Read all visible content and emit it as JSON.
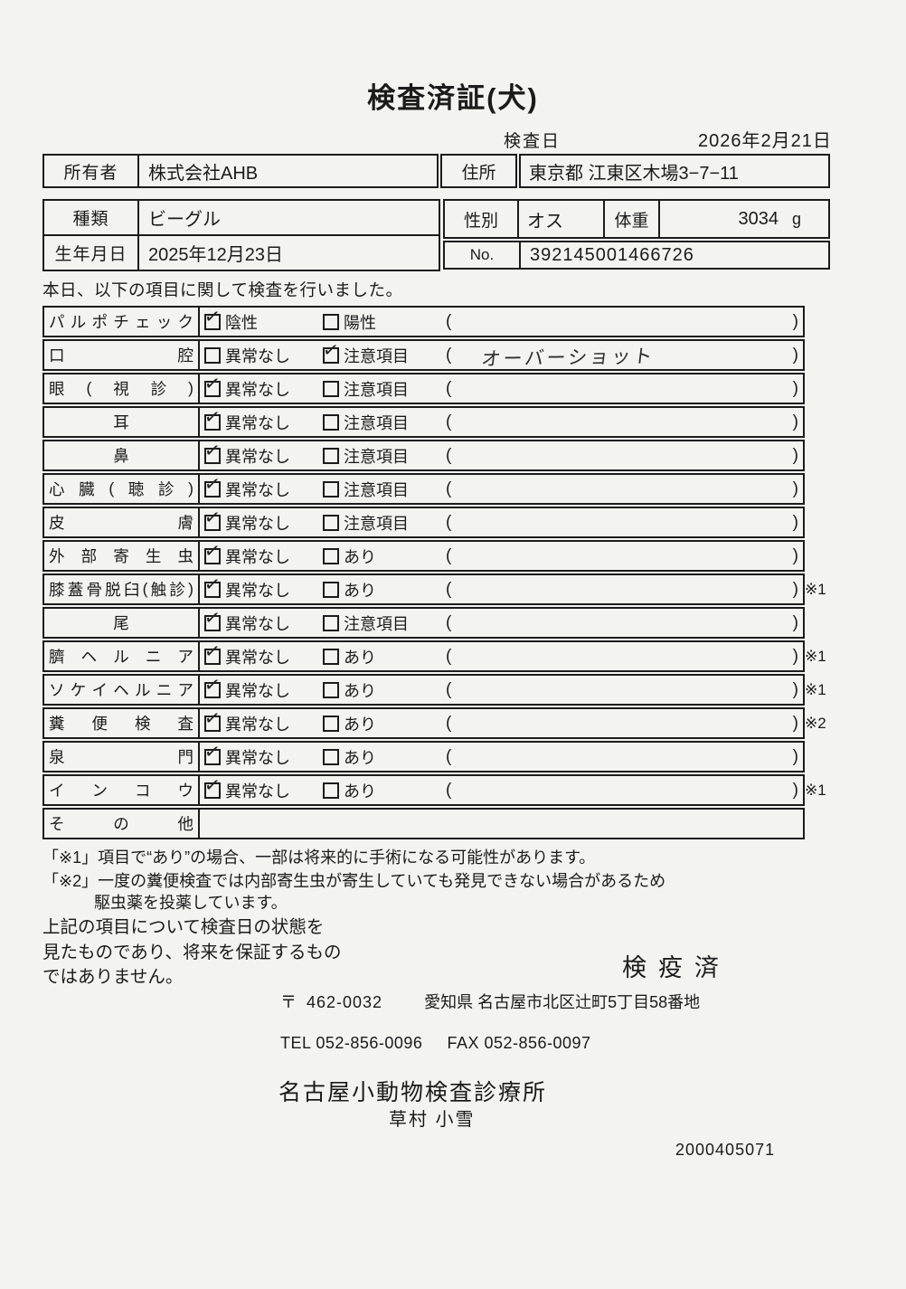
{
  "page": {
    "title": "検査済証(犬)"
  },
  "exam_date": {
    "label": "検査日",
    "value": "2026年2月21日"
  },
  "owner_table": {
    "owner_label": "所有者",
    "owner_value": "株式会社AHB",
    "address_label": "住所",
    "address_value": "東京都 江東区木場3−7−11"
  },
  "info_table": {
    "breed_label": "種類",
    "breed_value": "ビーグル",
    "sex_label": "性別",
    "sex_value": "オス",
    "weight_label": "体重",
    "weight_value": "3034",
    "weight_unit": "g",
    "birth_label": "生年月日",
    "birth_value": "2025年12月23日",
    "no_label": "No.",
    "no_value": "392145001466726"
  },
  "intro_text": "本日、以下の項目に関して検査を行いました。",
  "symbols": {
    "paren_open": "(",
    "paren_close": ")",
    "check_mark": "✓"
  },
  "exam_rows": [
    {
      "label": "パルポチェック",
      "options": [
        {
          "label": "陰性",
          "checked": true
        },
        {
          "label": "陽性",
          "checked": false
        }
      ],
      "paren_text": "",
      "note": ""
    },
    {
      "label": "口腔",
      "options": [
        {
          "label": "異常なし",
          "checked": false
        },
        {
          "label": "注意項目",
          "checked": true
        }
      ],
      "paren_text": "オーバーショット",
      "note": ""
    },
    {
      "label": "眼(視診)",
      "options": [
        {
          "label": "異常なし",
          "checked": true
        },
        {
          "label": "注意項目",
          "checked": false
        }
      ],
      "paren_text": "",
      "note": ""
    },
    {
      "label": "耳",
      "options": [
        {
          "label": "異常なし",
          "checked": true
        },
        {
          "label": "注意項目",
          "checked": false
        }
      ],
      "paren_text": "",
      "note": ""
    },
    {
      "label": "鼻",
      "options": [
        {
          "label": "異常なし",
          "checked": true
        },
        {
          "label": "注意項目",
          "checked": false
        }
      ],
      "paren_text": "",
      "note": ""
    },
    {
      "label": "心臓(聴診)",
      "options": [
        {
          "label": "異常なし",
          "checked": true
        },
        {
          "label": "注意項目",
          "checked": false
        }
      ],
      "paren_text": "",
      "note": ""
    },
    {
      "label": "皮膚",
      "options": [
        {
          "label": "異常なし",
          "checked": true
        },
        {
          "label": "注意項目",
          "checked": false
        }
      ],
      "paren_text": "",
      "note": ""
    },
    {
      "label": "外部寄生虫",
      "options": [
        {
          "label": "異常なし",
          "checked": true
        },
        {
          "label": "あり",
          "checked": false
        }
      ],
      "paren_text": "",
      "note": ""
    },
    {
      "label": "膝蓋骨脱臼(触診)",
      "options": [
        {
          "label": "異常なし",
          "checked": true
        },
        {
          "label": "あり",
          "checked": false
        }
      ],
      "paren_text": "",
      "note": "※1"
    },
    {
      "label": "尾",
      "options": [
        {
          "label": "異常なし",
          "checked": true
        },
        {
          "label": "注意項目",
          "checked": false
        }
      ],
      "paren_text": "",
      "note": ""
    },
    {
      "label": "臍ヘルニア",
      "options": [
        {
          "label": "異常なし",
          "checked": true
        },
        {
          "label": "あり",
          "checked": false
        }
      ],
      "paren_text": "",
      "note": "※1"
    },
    {
      "label": "ソケイヘルニア",
      "options": [
        {
          "label": "異常なし",
          "checked": true
        },
        {
          "label": "あり",
          "checked": false
        }
      ],
      "paren_text": "",
      "note": "※1"
    },
    {
      "label": "糞便検査",
      "options": [
        {
          "label": "異常なし",
          "checked": true
        },
        {
          "label": "あり",
          "checked": false
        }
      ],
      "paren_text": "",
      "note": "※2"
    },
    {
      "label": "泉門",
      "options": [
        {
          "label": "異常なし",
          "checked": true
        },
        {
          "label": "あり",
          "checked": false
        }
      ],
      "paren_text": "",
      "note": ""
    },
    {
      "label": "インコウ",
      "options": [
        {
          "label": "異常なし",
          "checked": true
        },
        {
          "label": "あり",
          "checked": false
        }
      ],
      "paren_text": "",
      "note": "※1"
    },
    {
      "label": "その他",
      "options": [],
      "paren_text": "",
      "note": ""
    }
  ],
  "notes": {
    "note1": "「※1」項目で“あり”の場合、一部は将来的に手術になる可能性があります。",
    "note2": "「※2」一度の糞便検査では内部寄生虫が寄生していても発見できない場合があるため",
    "note2_cont": "駆虫薬を投薬しています。"
  },
  "footer": {
    "disclaimer": "上記の項目について検査日の状態を\n見たものであり、将来を保証するもの\nではありません。",
    "quarantine": "検疫済",
    "postal_mark": "〒",
    "postal_code": "462-0032",
    "address": "愛知県 名古屋市北区辻町5丁目58番地",
    "tel": "TEL 052-856-0096",
    "fax": "FAX 052-856-0097",
    "clinic_name": "名古屋小動物検査診療所",
    "examiner_name": "草村 小雪",
    "serial_number": "2000405071"
  }
}
